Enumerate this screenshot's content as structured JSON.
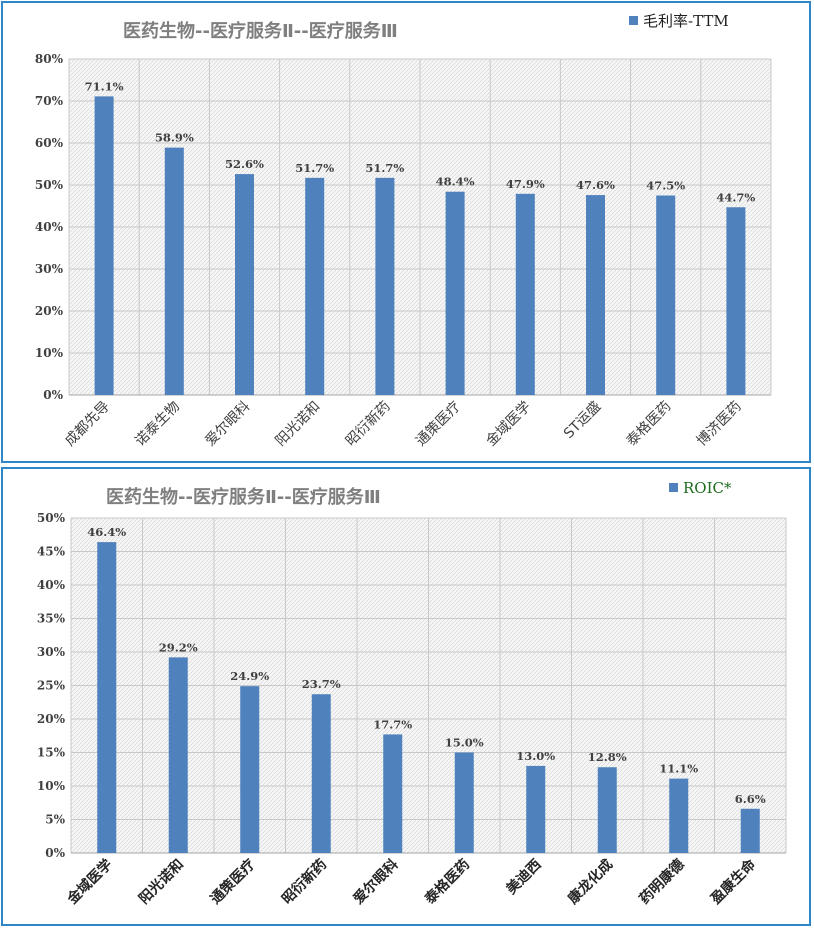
{
  "chart_data": [
    {
      "type": "bar",
      "title": "医药生物--医疗服务Ⅱ--医疗服务Ⅲ",
      "legend_position": "top-right",
      "legend_color": "#1f1f1f",
      "bar_color": "#4f81bd",
      "grid": true,
      "ylim": [
        0,
        80
      ],
      "yticks": [
        "0%",
        "10%",
        "20%",
        "30%",
        "40%",
        "50%",
        "60%",
        "70%",
        "80%"
      ],
      "categories": [
        "成都先导",
        "诺泰生物",
        "爱尔眼科",
        "阳光诺和",
        "昭衍新药",
        "通策医疗",
        "金域医学",
        "ST运盛",
        "泰格医药",
        "博济医药"
      ],
      "series": [
        {
          "name": "毛利率-TTM",
          "values": [
            71.1,
            58.9,
            52.6,
            51.7,
            51.7,
            48.4,
            47.9,
            47.6,
            47.5,
            44.7
          ],
          "labels": [
            "71.1%",
            "58.9%",
            "52.6%",
            "51.7%",
            "51.7%",
            "48.4%",
            "47.9%",
            "47.6%",
            "47.5%",
            "44.7%"
          ]
        }
      ]
    },
    {
      "type": "bar",
      "title": "医药生物--医疗服务Ⅱ--医疗服务Ⅲ",
      "legend_position": "top-right",
      "legend_color": "#1e6b1e",
      "bar_color": "#4f81bd",
      "grid": true,
      "ylim": [
        0,
        50
      ],
      "yticks": [
        "0%",
        "5%",
        "10%",
        "15%",
        "20%",
        "25%",
        "30%",
        "35%",
        "40%",
        "45%",
        "50%"
      ],
      "categories": [
        "金域医学",
        "阳光诺和",
        "通策医疗",
        "昭衍新药",
        "爱尔眼科",
        "泰格医药",
        "美迪西",
        "康龙化成",
        "药明康德",
        "盈康生命"
      ],
      "series": [
        {
          "name": "ROIC*",
          "values": [
            46.4,
            29.2,
            24.9,
            23.7,
            17.7,
            15.0,
            13.0,
            12.8,
            11.1,
            6.6
          ],
          "labels": [
            "46.4%",
            "29.2%",
            "24.9%",
            "23.7%",
            "17.7%",
            "15.0%",
            "13.0%",
            "12.8%",
            "11.1%",
            "6.6%"
          ]
        }
      ]
    }
  ]
}
